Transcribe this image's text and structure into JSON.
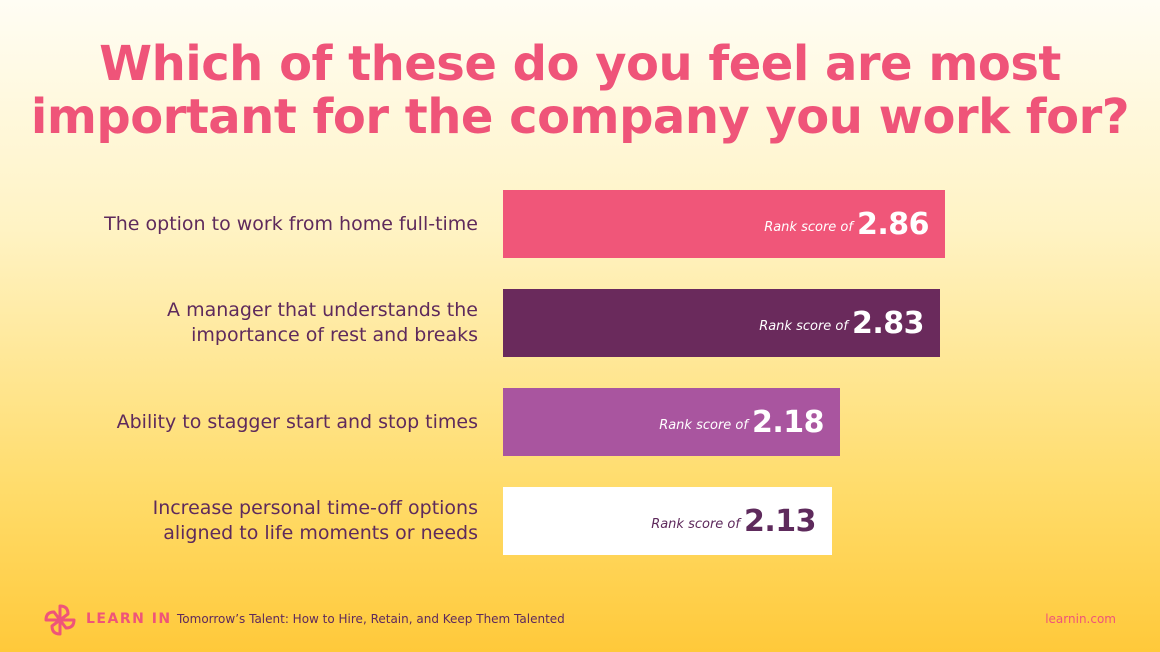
{
  "chart_data": {
    "type": "bar",
    "orientation": "horizontal",
    "title": [
      "Which of these do you feel are most",
      "important for the company you work for?"
    ],
    "value_prefix": "Rank score of",
    "categories": [
      [
        "The option to work from home full-time"
      ],
      [
        "A manager that understands the",
        "importance of rest and breaks"
      ],
      [
        "Ability to stagger start and stop times"
      ],
      [
        "Increase personal time-off options",
        "aligned to life moments or needs"
      ]
    ],
    "values": [
      2.86,
      2.83,
      2.18,
      2.13
    ],
    "value_labels": [
      "2.86",
      "2.83",
      "2.18",
      "2.13"
    ],
    "bar_colors": [
      "#f05679",
      "#6a2a5c",
      "#a9559f",
      "#ffffff"
    ],
    "label_colors": [
      "#ffffff",
      "#ffffff",
      "#ffffff",
      "#5e2a5c"
    ]
  },
  "footer": {
    "brand": "LEARN IN",
    "subtitle": "Tomorrow’s Talent: How to Hire, Retain, and Keep Them Talented",
    "site": "learnin.com",
    "logo_icon": "pinwheel-icon"
  }
}
